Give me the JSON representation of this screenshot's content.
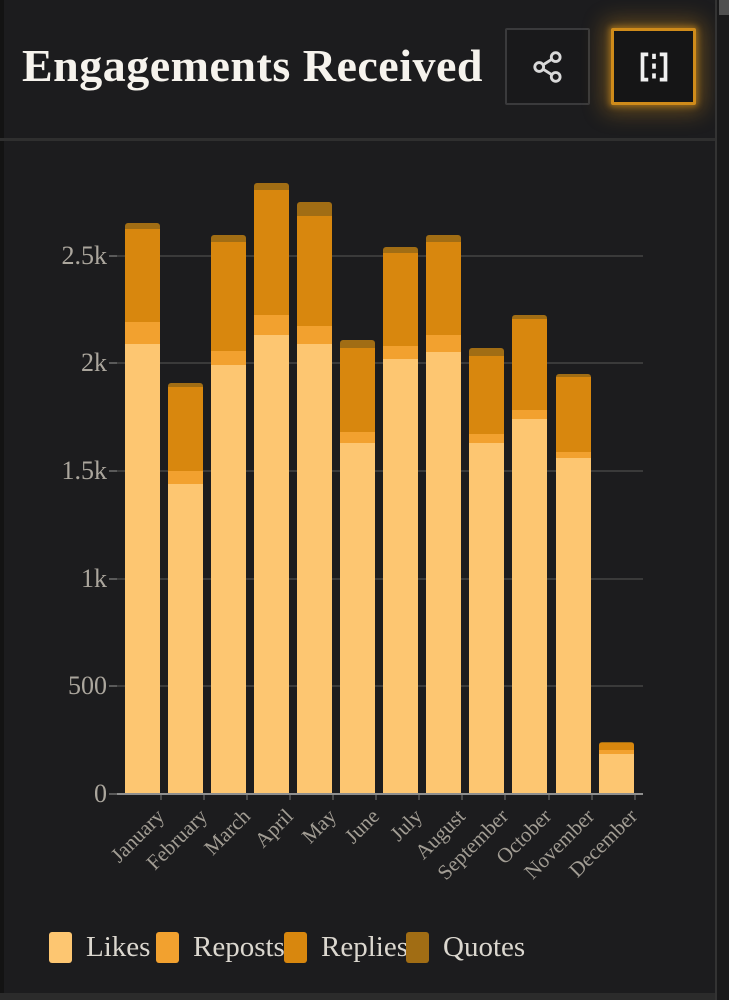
{
  "header": {
    "title": "Engagements Received",
    "buttons": [
      {
        "id": "share-button",
        "icon": "share-nodes-icon",
        "active": false
      },
      {
        "id": "expand-button",
        "icon": "frame-dashed-icon",
        "active": true
      }
    ]
  },
  "chart_data": {
    "type": "bar",
    "stacked": true,
    "title": "Engagements Received",
    "categories": [
      "January",
      "February",
      "March",
      "April",
      "May",
      "June",
      "July",
      "August",
      "September",
      "October",
      "November",
      "December"
    ],
    "series": [
      {
        "name": "Likes",
        "color": "#fdc671",
        "values": [
          2090,
          1440,
          1990,
          2130,
          2090,
          1630,
          2020,
          2050,
          1630,
          1740,
          1560,
          185
        ]
      },
      {
        "name": "Reposts",
        "color": "#f2a12f",
        "values": [
          100,
          60,
          65,
          95,
          85,
          50,
          60,
          80,
          40,
          45,
          30,
          20
        ]
      },
      {
        "name": "Replies",
        "color": "#d8870e",
        "values": [
          435,
          390,
          510,
          580,
          510,
          390,
          430,
          435,
          365,
          420,
          345,
          30
        ]
      },
      {
        "name": "Quotes",
        "color": "#a16d14",
        "values": [
          25,
          20,
          30,
          30,
          65,
          40,
          30,
          30,
          35,
          20,
          15,
          5
        ]
      }
    ],
    "totals": [
      2650,
      1910,
      2595,
      2835,
      2750,
      2110,
      2540,
      2595,
      2070,
      2225,
      1950,
      240
    ],
    "ylabel": "",
    "xlabel": "",
    "ylim": [
      0,
      2835
    ],
    "ytick_labels": [
      "0",
      "500",
      "1k",
      "1.5k",
      "2k",
      "2.5k"
    ],
    "ytick_values": [
      0,
      500,
      1000,
      1500,
      2000,
      2500
    ],
    "grid": "horizontal",
    "legend_position": "bottom"
  },
  "colors": {
    "background": "#1c1c1e",
    "gridline": "#3a3a3a",
    "axis_line": "#8f8f8f",
    "axis_text": "#aba69d",
    "title_text": "#f6f3ed",
    "legend_text": "#dbd7cf",
    "active_button_border": "#cf8b1a"
  }
}
